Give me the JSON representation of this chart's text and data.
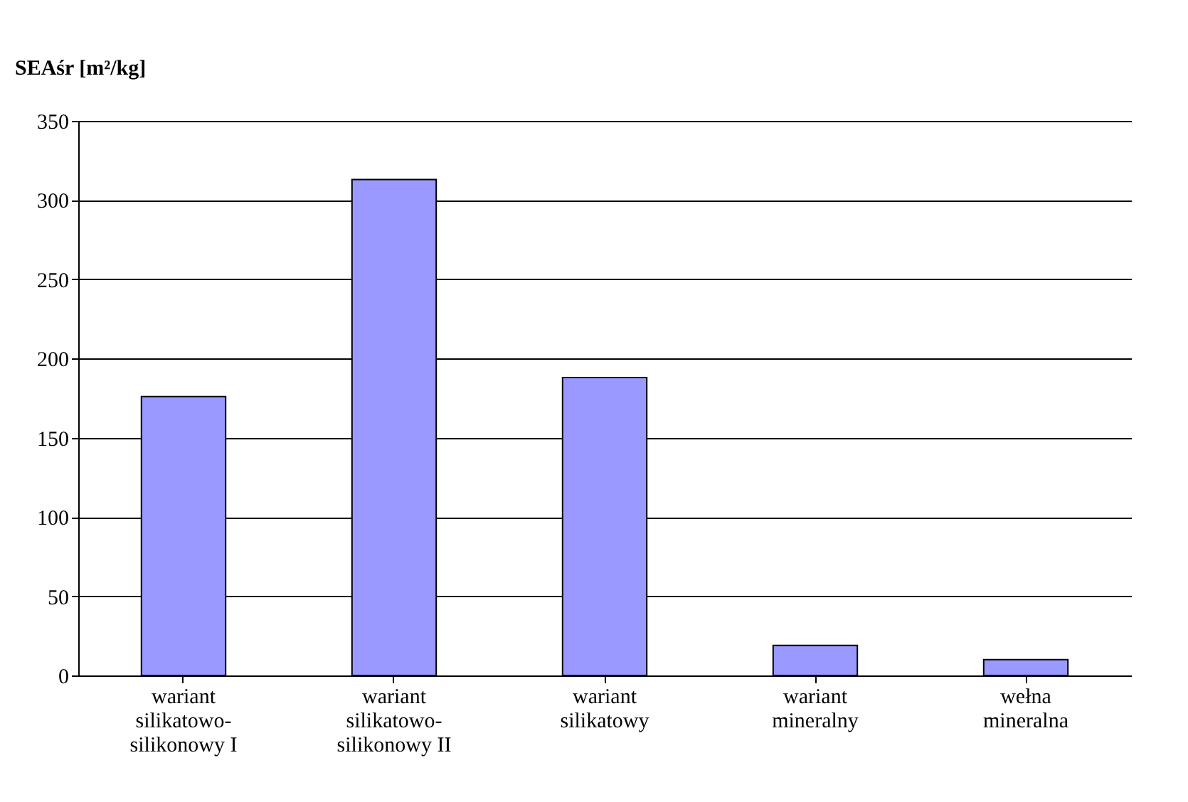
{
  "chart_data": {
    "type": "bar",
    "ylabel": "SEAśr [m²/kg]",
    "categories": [
      "wariant silikatowo-silikonowy I",
      "wariant silikatowo-silikonowy II",
      "wariant silikatowy",
      "wariant mineralny",
      "wełna mineralna"
    ],
    "values": [
      176,
      313,
      188,
      19,
      10
    ],
    "color": "#9999ff",
    "ylim": [
      0,
      350
    ],
    "yticks": [
      0,
      50,
      100,
      150,
      200,
      250,
      300,
      350
    ],
    "grid": "y"
  }
}
